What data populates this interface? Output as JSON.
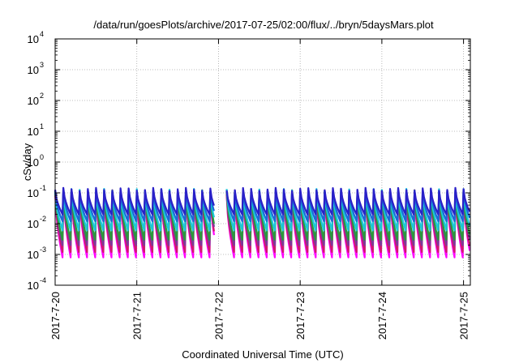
{
  "chart_data": {
    "type": "line",
    "title": "/data/run/goesPlots/archive/2017-07-25/02:00/flux/../bryn/5daysMars.plot",
    "xlabel": "Coordinated Universal Time (UTC)",
    "ylabel": "cSv/day",
    "y_scale": "log",
    "ylim": [
      0.0001,
      10000
    ],
    "xlim": [
      "2017-07-20",
      "2017-07-25 02:00"
    ],
    "grid": true,
    "legend": "none",
    "x_ticks": [
      {
        "label": "2017-7-20",
        "value": 0
      },
      {
        "label": "2017-7-21",
        "value": 1
      },
      {
        "label": "2017-7-22",
        "value": 2
      },
      {
        "label": "2017-7-23",
        "value": 3
      },
      {
        "label": "2017-7-24",
        "value": 4
      },
      {
        "label": "2017-7-25",
        "value": 5
      }
    ],
    "y_ticks": [
      {
        "base": "10",
        "exp": "-4",
        "value": 0.0001
      },
      {
        "base": "10",
        "exp": "-3",
        "value": 0.001
      },
      {
        "base": "10",
        "exp": "-2",
        "value": 0.01
      },
      {
        "base": "10",
        "exp": "-1",
        "value": 0.1
      },
      {
        "base": "10",
        "exp": "0",
        "value": 1
      },
      {
        "base": "10",
        "exp": "1",
        "value": 10
      },
      {
        "base": "10",
        "exp": "2",
        "value": 100
      },
      {
        "base": "10",
        "exp": "3",
        "value": 1000
      },
      {
        "base": "10",
        "exp": "4",
        "value": 10000
      }
    ],
    "series": [
      {
        "color": "#ff00ff",
        "peak": 0.1,
        "trough": 0.0008
      },
      {
        "color": "#d01a6a",
        "peak": 0.1,
        "trough": 0.0012
      },
      {
        "color": "#7a3a9a",
        "peak": 0.11,
        "trough": 0.002
      },
      {
        "color": "#2a9a3a",
        "peak": 0.11,
        "trough": 0.003
      },
      {
        "color": "#1ac8d8",
        "peak": 0.12,
        "trough": 0.006
      },
      {
        "color": "#1a6ad8",
        "peak": 0.12,
        "trough": 0.012
      },
      {
        "color": "#2a20c8",
        "peak": 0.13,
        "trough": 0.02
      }
    ],
    "oscillation": {
      "cycles": 50,
      "cycles_per_day": 10,
      "gap": {
        "start_day": 1.95,
        "end_day": 2.1
      }
    }
  }
}
